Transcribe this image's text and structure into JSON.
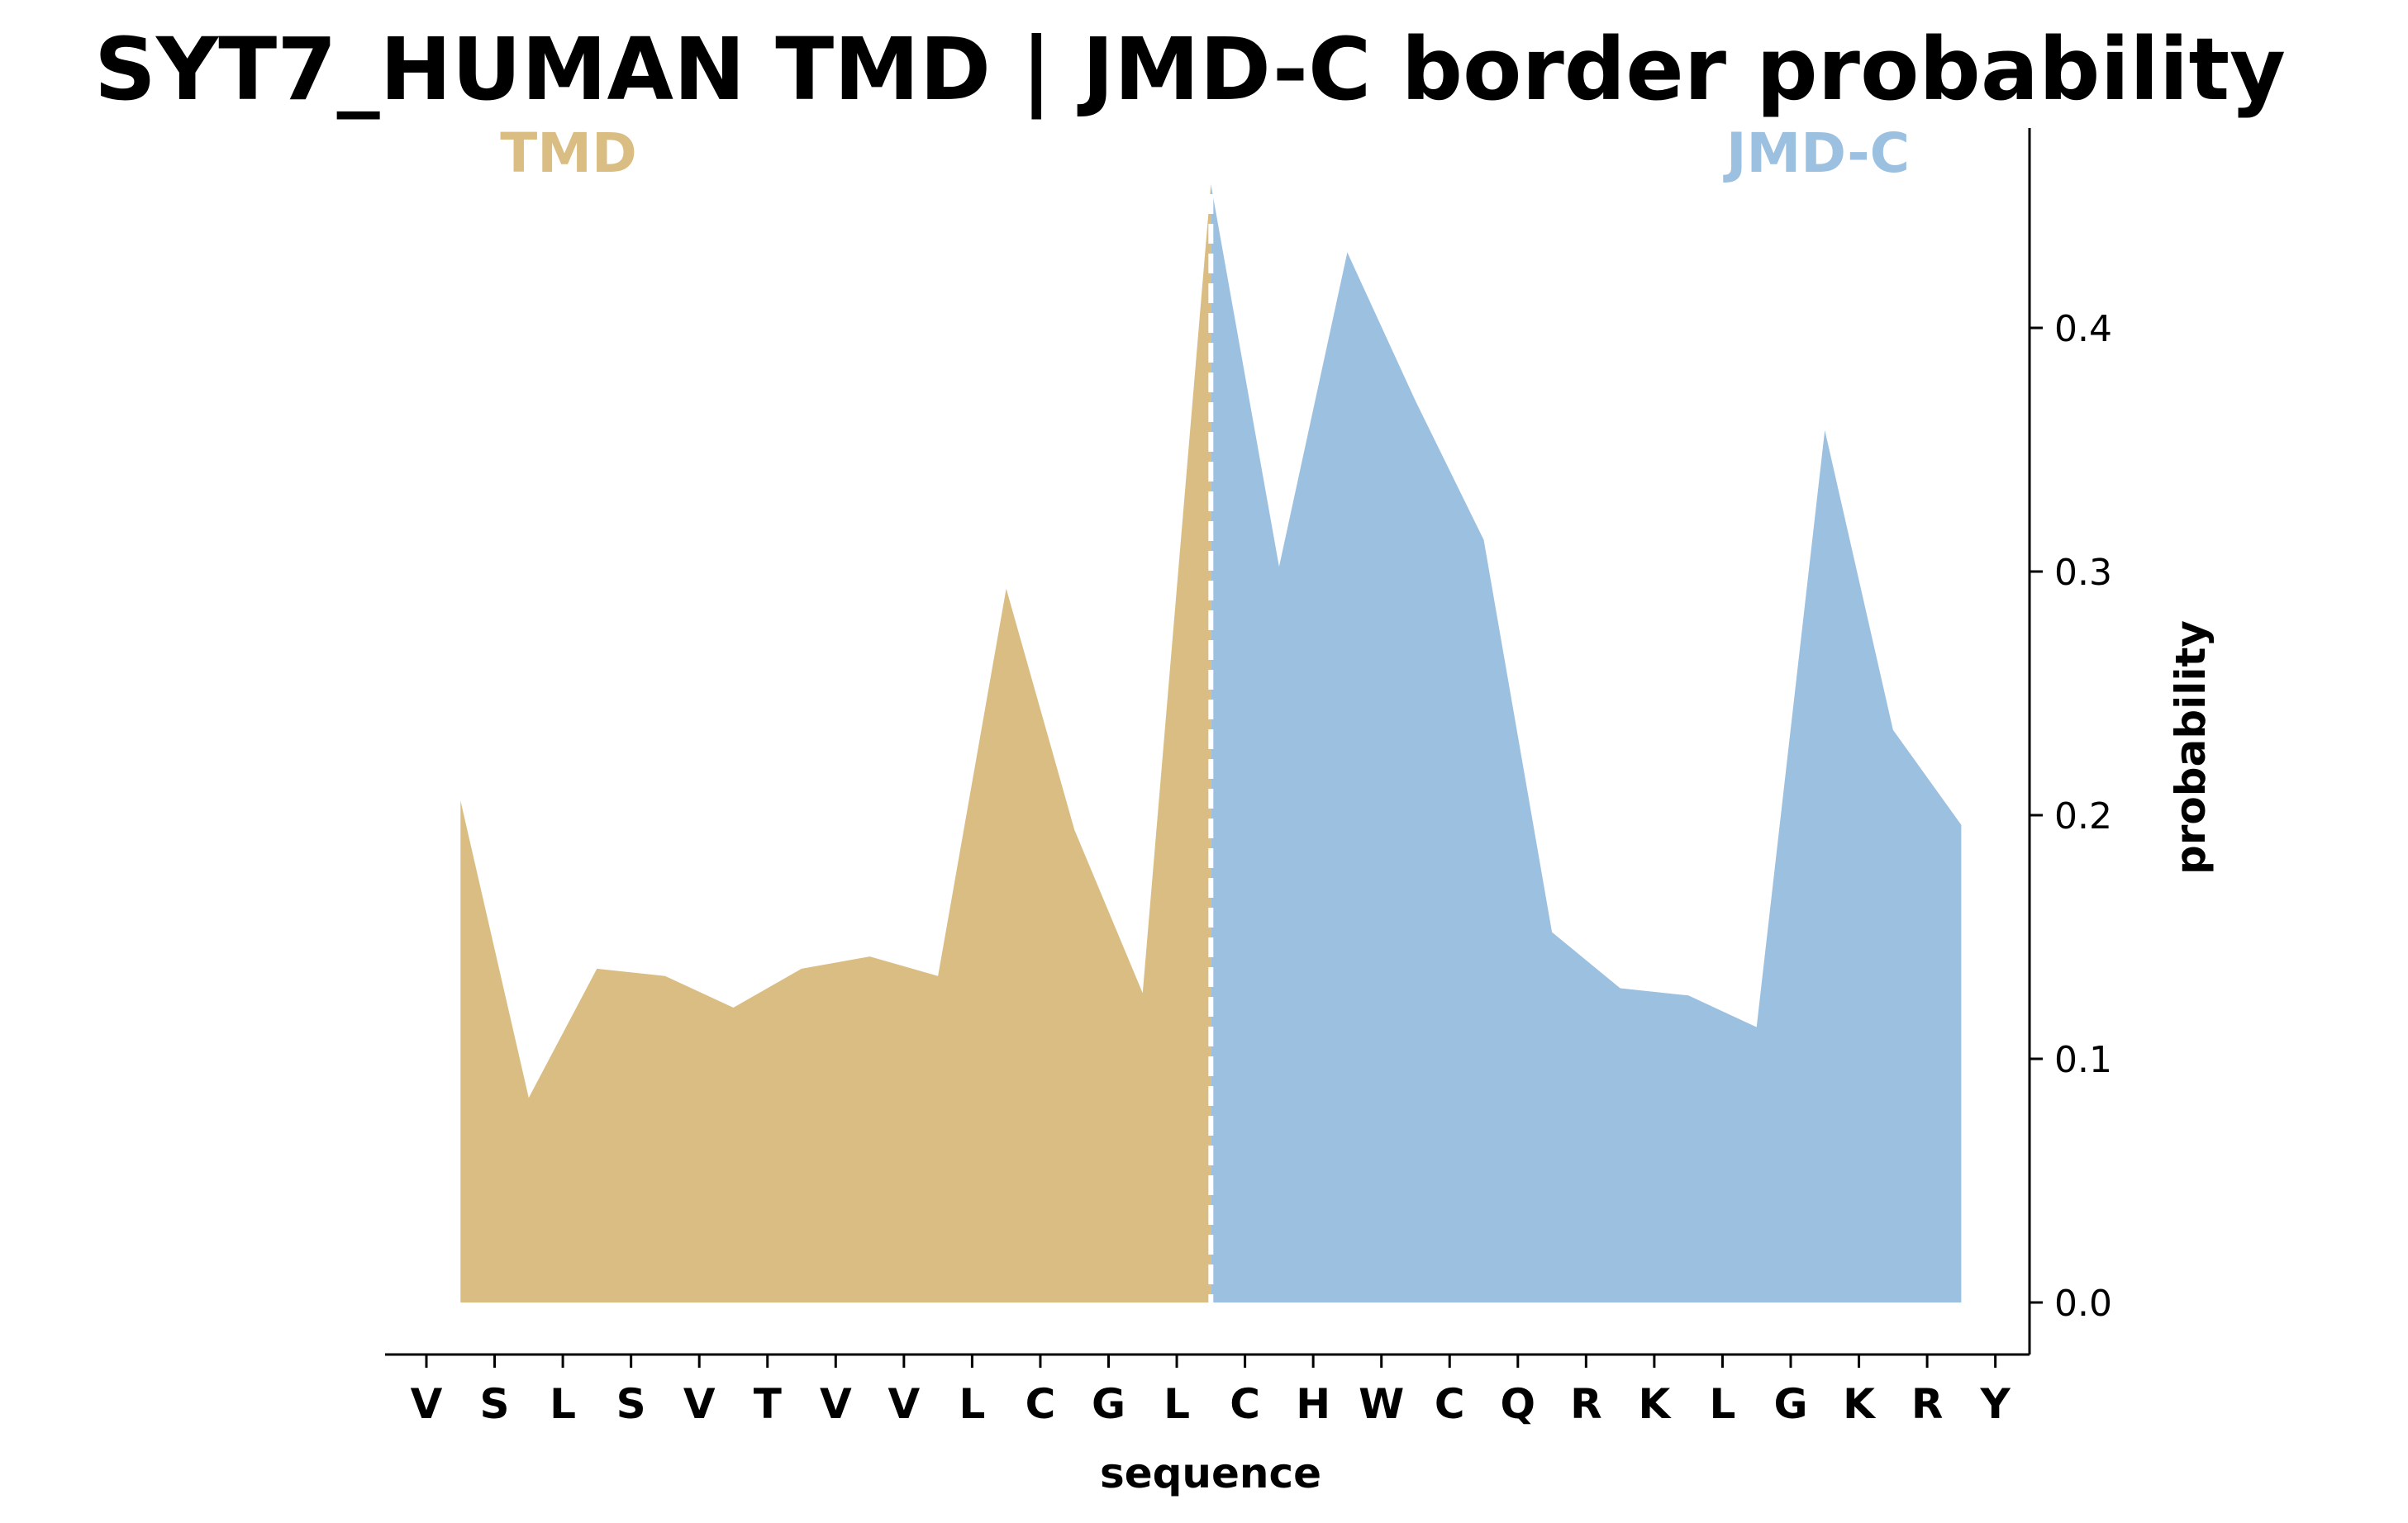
{
  "chart_data": {
    "type": "area",
    "title": "SYT7_HUMAN TMD | JMD-C border probability",
    "xlabel": "sequence",
    "ylabel": "probability",
    "y_axis_side": "right",
    "ylim": [
      -0.022,
      0.48
    ],
    "yticks": [
      "0.0",
      "0.1",
      "0.2",
      "0.3",
      "0.4"
    ],
    "x_ticks": [
      "V",
      "S",
      "L",
      "S",
      "V",
      "T",
      "V",
      "V",
      "L",
      "C",
      "G",
      "L",
      "C",
      "H",
      "W",
      "C",
      "Q",
      "R",
      "K",
      "L",
      "G",
      "K",
      "R",
      "Y"
    ],
    "regions": [
      {
        "label": "TMD",
        "color": "#d9bd82"
      },
      {
        "label": "JMD-C",
        "color": "#9bc0e0"
      }
    ],
    "border_position": 11.5,
    "border_line": "dashed-white",
    "series": [
      {
        "region": "TMD",
        "x": [
          0.5,
          1.5,
          2.5,
          3.5,
          4.5,
          5.5,
          6.5,
          7.5,
          8.5,
          9.5,
          10.5,
          11.5
        ],
        "y": [
          0.206,
          0.084,
          0.137,
          0.134,
          0.121,
          0.137,
          0.142,
          0.134,
          0.293,
          0.194,
          0.127,
          0.459
        ]
      },
      {
        "region": "JMD-C",
        "x": [
          11.5,
          12.5,
          13.5,
          14.5,
          15.5,
          16.5,
          17.5,
          18.5,
          19.5,
          20.5,
          21.5,
          22.5
        ],
        "y": [
          0.459,
          0.302,
          0.431,
          0.37,
          0.313,
          0.152,
          0.129,
          0.126,
          0.113,
          0.358,
          0.235,
          0.196
        ]
      }
    ],
    "grid": false,
    "legend": "none"
  }
}
